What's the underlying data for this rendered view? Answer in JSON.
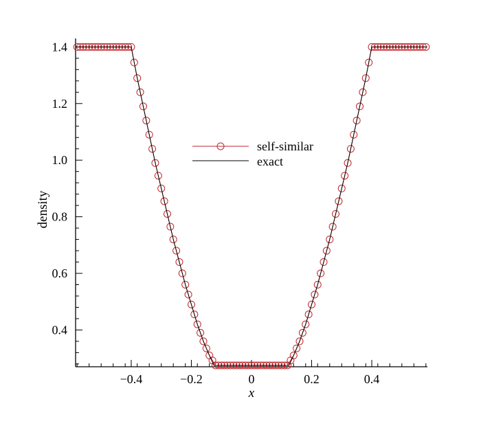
{
  "chart_data": {
    "type": "line",
    "xlabel": "x",
    "ylabel": "density",
    "xlim": [
      -0.585,
      0.585
    ],
    "ylim": [
      0.27,
      1.43
    ],
    "xticks": [
      -0.4,
      -0.2,
      0,
      0.2,
      0.4
    ],
    "xtick_labels": [
      "−0.4",
      "−0.2",
      "0",
      "0.2",
      "0.4"
    ],
    "yticks": [
      0.4,
      0.6,
      0.8,
      1.0,
      1.2,
      1.4
    ],
    "ytick_labels": [
      "0.4",
      "0.6",
      "0.8",
      "1.0",
      "1.2",
      "1.4"
    ],
    "legend_position": "center",
    "grid": false,
    "series": [
      {
        "name": "self-similar",
        "style": "line-with-circle-markers",
        "color": "#c0262c",
        "x": [
          -0.58,
          -0.56,
          -0.54,
          -0.52,
          -0.5,
          -0.48,
          -0.46,
          -0.44,
          -0.42,
          -0.4,
          -0.38,
          -0.36,
          -0.34,
          -0.32,
          -0.3,
          -0.28,
          -0.26,
          -0.24,
          -0.22,
          -0.2,
          -0.18,
          -0.16,
          -0.14,
          -0.12,
          -0.1,
          -0.08,
          -0.06,
          -0.04,
          -0.02,
          0,
          0.02,
          0.04,
          0.06,
          0.08,
          0.1,
          0.12,
          0.14,
          0.16,
          0.18,
          0.2,
          0.22,
          0.24,
          0.26,
          0.28,
          0.3,
          0.32,
          0.34,
          0.36,
          0.38,
          0.4,
          0.42,
          0.44,
          0.46,
          0.48,
          0.5,
          0.52,
          0.54,
          0.56,
          0.58
        ],
        "y": [
          1.4,
          1.4,
          1.4,
          1.4,
          1.4,
          1.4,
          1.4,
          1.4,
          1.4,
          1.4,
          1.29,
          1.19,
          1.09,
          0.99,
          0.9,
          0.81,
          0.72,
          0.64,
          0.56,
          0.49,
          0.42,
          0.36,
          0.31,
          0.275,
          0.275,
          0.275,
          0.275,
          0.275,
          0.275,
          0.275,
          0.275,
          0.275,
          0.275,
          0.275,
          0.275,
          0.275,
          0.31,
          0.36,
          0.42,
          0.49,
          0.56,
          0.64,
          0.72,
          0.81,
          0.9,
          0.99,
          1.09,
          1.19,
          1.29,
          1.4,
          1.4,
          1.4,
          1.4,
          1.4,
          1.4,
          1.4,
          1.4,
          1.4,
          1.4
        ]
      },
      {
        "name": "exact",
        "style": "line",
        "color": "#000000",
        "x": [
          -0.585,
          -0.4,
          -0.38,
          -0.36,
          -0.34,
          -0.32,
          -0.3,
          -0.28,
          -0.26,
          -0.24,
          -0.22,
          -0.2,
          -0.18,
          -0.16,
          -0.14,
          -0.125,
          0.125,
          0.14,
          0.16,
          0.18,
          0.2,
          0.22,
          0.24,
          0.26,
          0.28,
          0.3,
          0.32,
          0.34,
          0.36,
          0.38,
          0.4,
          0.585
        ],
        "y": [
          1.4,
          1.4,
          1.29,
          1.19,
          1.09,
          0.99,
          0.9,
          0.81,
          0.72,
          0.64,
          0.56,
          0.49,
          0.42,
          0.36,
          0.31,
          0.275,
          0.275,
          0.31,
          0.36,
          0.42,
          0.49,
          0.56,
          0.64,
          0.72,
          0.81,
          0.9,
          0.99,
          1.09,
          1.19,
          1.29,
          1.4,
          1.4
        ]
      }
    ]
  }
}
